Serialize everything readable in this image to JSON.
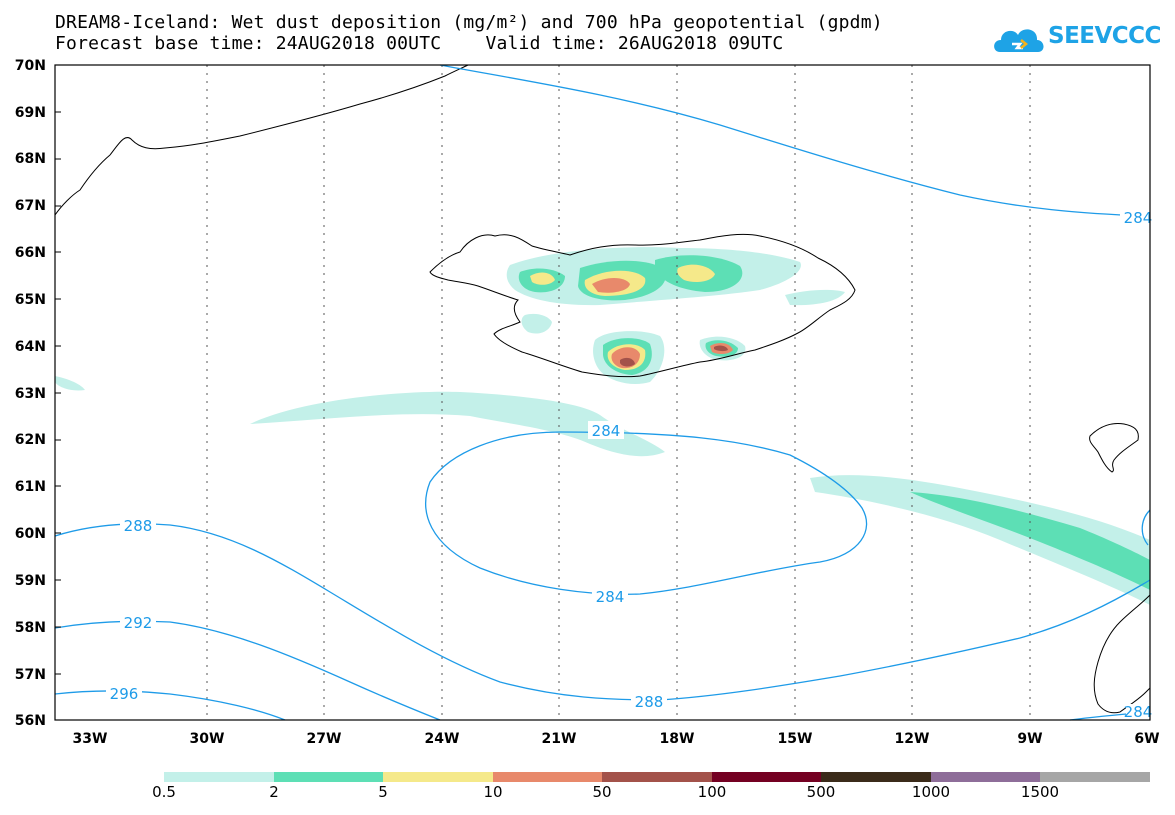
{
  "title": {
    "line1": "DREAM8-Iceland: Wet dust deposition (mg/m²) and 700 hPa geopotential (gpdm)",
    "line2": "Forecast base time: 24AUG2018 00UTC    Valid time: 26AUG2018 09UTC"
  },
  "logo": {
    "text": "SEEVCCC",
    "icon": "cloud-icon",
    "color": "#1ea3e6"
  },
  "axes": {
    "lat_labels": [
      "70N",
      "69N",
      "68N",
      "67N",
      "66N",
      "65N",
      "64N",
      "63N",
      "62N",
      "61N",
      "60N",
      "59N",
      "58N",
      "57N",
      "56N"
    ],
    "lon_labels": [
      "33W",
      "30W",
      "27W",
      "24W",
      "21W",
      "18W",
      "15W",
      "12W",
      "9W",
      "6W"
    ]
  },
  "contour_labels": [
    "288",
    "292",
    "296",
    "284",
    "284",
    "284",
    "288",
    "284"
  ],
  "colorbar": {
    "labels": [
      "0.5",
      "2",
      "5",
      "10",
      "50",
      "100",
      "500",
      "1000",
      "1500"
    ],
    "colors": [
      "#c3f0e9",
      "#5ddfb5",
      "#f5e98a",
      "#e8896b",
      "#a3524a",
      "#740022",
      "#3b2b1a",
      "#8e6d99",
      "#a6a6a6"
    ]
  },
  "colors": {
    "contour": "#1e9be8",
    "coast": "#000000",
    "grid": "#555555"
  }
}
